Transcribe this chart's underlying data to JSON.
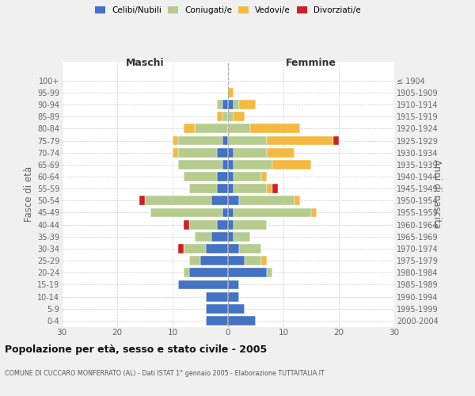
{
  "age_groups": [
    "0-4",
    "5-9",
    "10-14",
    "15-19",
    "20-24",
    "25-29",
    "30-34",
    "35-39",
    "40-44",
    "45-49",
    "50-54",
    "55-59",
    "60-64",
    "65-69",
    "70-74",
    "75-79",
    "80-84",
    "85-89",
    "90-94",
    "95-99",
    "100+"
  ],
  "birth_years": [
    "2000-2004",
    "1995-1999",
    "1990-1994",
    "1985-1989",
    "1980-1984",
    "1975-1979",
    "1970-1974",
    "1965-1969",
    "1960-1964",
    "1955-1959",
    "1950-1954",
    "1945-1949",
    "1940-1944",
    "1935-1939",
    "1930-1934",
    "1925-1929",
    "1920-1924",
    "1915-1919",
    "1910-1914",
    "1905-1909",
    "≤ 1904"
  ],
  "males": {
    "celibi": [
      4,
      4,
      4,
      9,
      7,
      5,
      4,
      3,
      2,
      1,
      3,
      2,
      2,
      1,
      2,
      1,
      0,
      0,
      1,
      0,
      0
    ],
    "coniugati": [
      0,
      0,
      0,
      0,
      1,
      2,
      4,
      3,
      5,
      13,
      12,
      5,
      6,
      8,
      7,
      8,
      6,
      1,
      1,
      0,
      0
    ],
    "vedovi": [
      0,
      0,
      0,
      0,
      0,
      0,
      0,
      0,
      0,
      0,
      0,
      0,
      0,
      0,
      1,
      1,
      2,
      1,
      0,
      0,
      0
    ],
    "divorziati": [
      0,
      0,
      0,
      0,
      0,
      0,
      1,
      0,
      1,
      0,
      1,
      0,
      0,
      0,
      0,
      0,
      0,
      0,
      0,
      0,
      0
    ]
  },
  "females": {
    "nubili": [
      5,
      3,
      2,
      2,
      7,
      3,
      2,
      1,
      1,
      1,
      2,
      1,
      1,
      1,
      1,
      0,
      0,
      0,
      1,
      0,
      0
    ],
    "coniugate": [
      0,
      0,
      0,
      0,
      1,
      3,
      4,
      3,
      6,
      14,
      10,
      6,
      5,
      7,
      6,
      7,
      4,
      1,
      1,
      0,
      0
    ],
    "vedove": [
      0,
      0,
      0,
      0,
      0,
      1,
      0,
      0,
      0,
      1,
      1,
      1,
      1,
      7,
      5,
      12,
      9,
      2,
      3,
      1,
      0
    ],
    "divorziate": [
      0,
      0,
      0,
      0,
      0,
      0,
      0,
      0,
      0,
      0,
      0,
      1,
      0,
      0,
      0,
      1,
      0,
      0,
      0,
      0,
      0
    ]
  },
  "colors": {
    "celibi": "#4472c4",
    "coniugati": "#b5cc8e",
    "vedovi": "#f4b942",
    "divorziati": "#cc2222"
  },
  "xlim": 30,
  "title": "Popolazione per età, sesso e stato civile - 2005",
  "subtitle": "COMUNE DI CUCCARO MONFERRATO (AL) - Dati ISTAT 1° gennaio 2005 - Elaborazione TUTTAITALIA.IT",
  "ylabel_left": "Fasce di età",
  "ylabel_right": "Anni di nascita",
  "label_maschi": "Maschi",
  "label_femmine": "Femmine",
  "bg_color": "#f0f0f0",
  "plot_bg": "#ffffff",
  "legend_labels": [
    "Celibi/Nubili",
    "Coniugati/e",
    "Vedovi/e",
    "Divorziati/e"
  ]
}
